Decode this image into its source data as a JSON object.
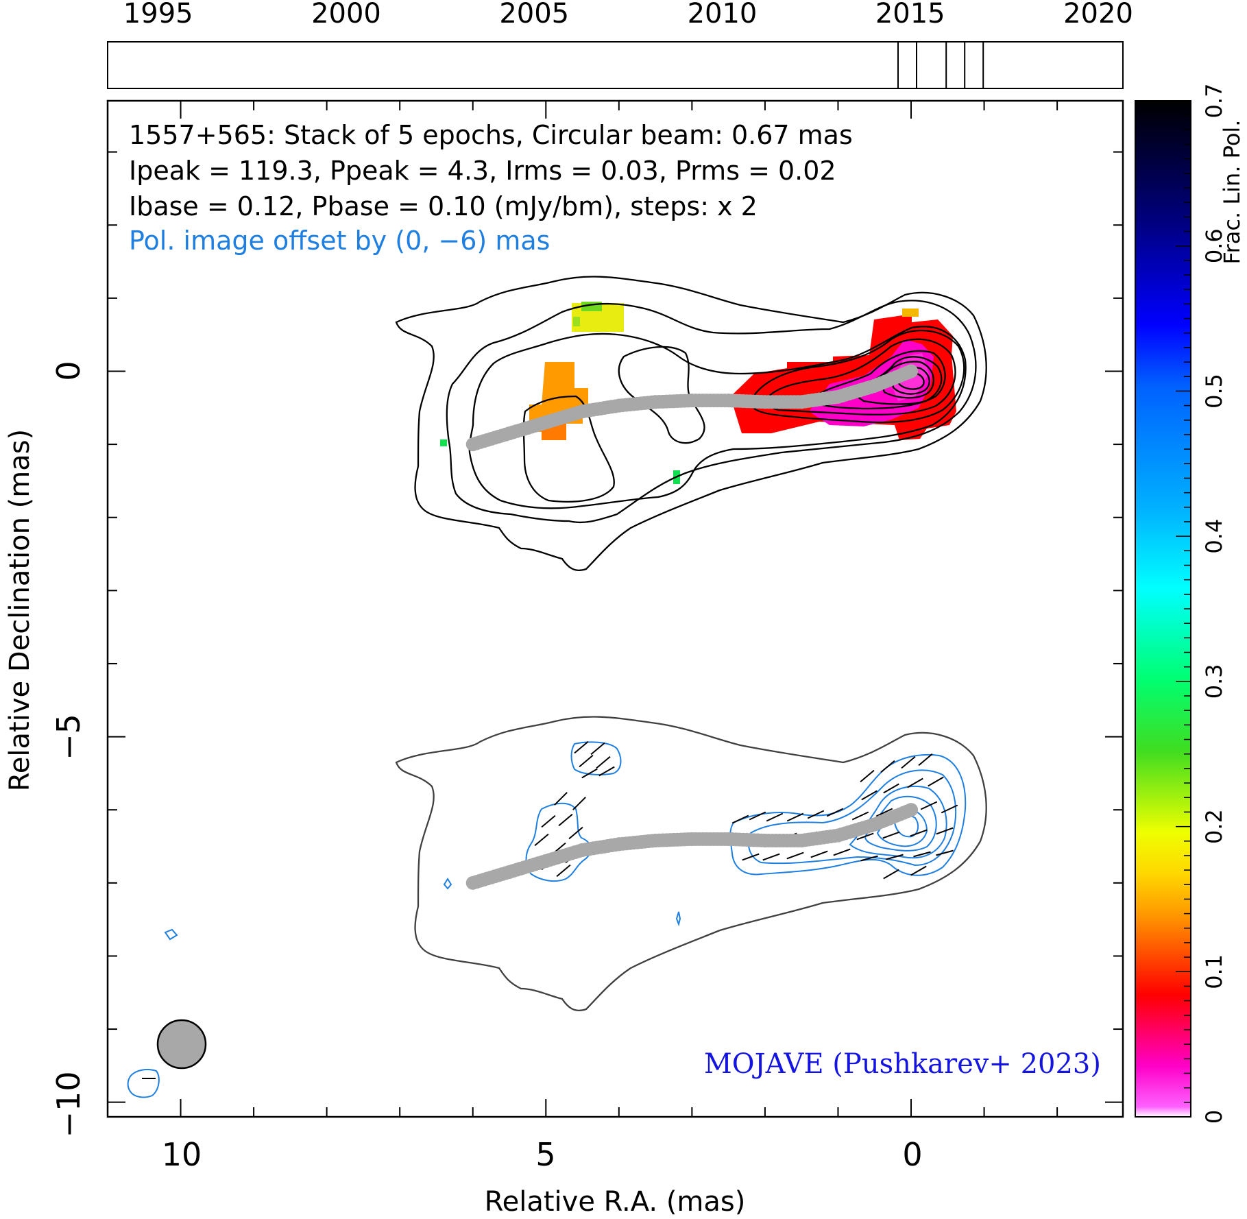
{
  "chart_data": {
    "type": "heatmap",
    "header_lines": [
      "1557+565: Stack of 5 epochs, Circular beam: 0.67 mas",
      "Ipeak = 119.3, Ppeak = 4.3, Irms = 0.03, Prms = 0.02",
      "Ibase = 0.12, Pbase = 0.10 (mJy/bm), steps: x 2"
    ],
    "pol_offset_note": "Pol. image offset by (0, −6) mas",
    "credit": "MOJAVE (Pushkarev+ 2023)",
    "xlabel": "Relative R.A. (mas)",
    "ylabel": "Relative Declination (mas)",
    "xlim": [
      11,
      -2.9
    ],
    "ylim": [
      -10.2,
      3.7
    ],
    "x_tick_labels": [
      "10",
      "5",
      "0"
    ],
    "y_tick_labels": [
      "−10",
      "−5",
      "0"
    ],
    "beam_diameter_mas": 0.67,
    "epoch_timeline": {
      "range": [
        1993,
        2020
      ],
      "tick_labels": [
        "1995",
        "2000",
        "2005",
        "2010",
        "2015",
        "2020"
      ],
      "epochs": [
        2014.2,
        2014.7,
        2015.5,
        2016.0,
        2016.5
      ]
    },
    "colorbar": {
      "label": "Frac. Lin. Pol.",
      "range": [
        0,
        0.7
      ],
      "tick_labels": [
        "0",
        "0.1",
        "0.2",
        "0.3",
        "0.4",
        "0.5",
        "0.6",
        "0.7"
      ]
    },
    "ridge_line": [
      [
        6,
        -1
      ],
      [
        5.5,
        -0.85
      ],
      [
        5,
        -0.7
      ],
      [
        4.5,
        -0.55
      ],
      [
        4,
        -0.47
      ],
      [
        3.5,
        -0.42
      ],
      [
        3,
        -0.4
      ],
      [
        2.5,
        -0.4
      ],
      [
        2,
        -0.42
      ],
      [
        1.5,
        -0.42
      ],
      [
        1,
        -0.35
      ],
      [
        0.5,
        -0.2
      ],
      [
        0,
        0
      ]
    ],
    "pol_patches": [
      {
        "x": 4.4,
        "y": 0.7,
        "fpol": 0.18
      },
      {
        "x": 4.9,
        "y": -0.4,
        "fpol": 0.11
      },
      {
        "x": 2.2,
        "y": -0.35,
        "fpol": 0.05
      },
      {
        "x": 0.4,
        "y": -0.15,
        "fpol": 0.02
      },
      {
        "x": 0.0,
        "y": 0.55,
        "fpol": 0.12
      },
      {
        "x": 6.35,
        "y": -1.0,
        "fpol": 0.24
      },
      {
        "x": 3.2,
        "y": -1.45,
        "fpol": 0.24
      }
    ],
    "colors": {
      "ridge": "#a8a8a8",
      "pol_contours": "#1f7fe0",
      "evpa_ticks": "#000000",
      "credit": "#1414e0",
      "note": "#1f7fe0"
    }
  }
}
